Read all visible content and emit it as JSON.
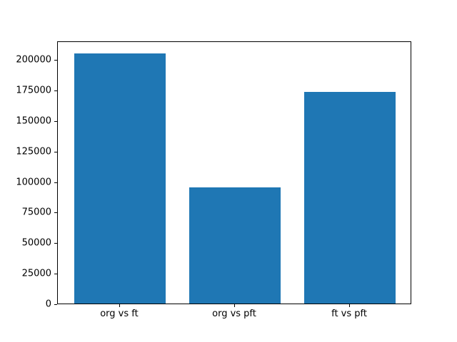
{
  "chart_data": {
    "type": "bar",
    "categories": [
      "org vs ft",
      "org vs pft",
      "ft vs pft"
    ],
    "values": [
      205000,
      95000,
      173000
    ],
    "title": "",
    "xlabel": "",
    "ylabel": "",
    "ylim": [
      0,
      215250
    ],
    "yticks": [
      0,
      25000,
      50000,
      75000,
      100000,
      125000,
      150000,
      175000,
      200000
    ],
    "xlim": [
      -0.54,
      2.54
    ],
    "bar_width": 0.8,
    "bar_color": "#1f77b4",
    "spine_color": "#000000",
    "background_color": "#ffffff",
    "grid": false,
    "legend": false
  }
}
